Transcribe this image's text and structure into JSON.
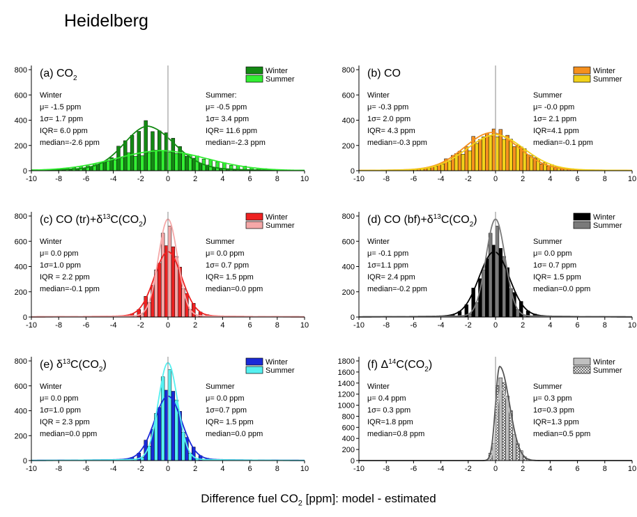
{
  "title": "Heidelberg",
  "xlabel": {
    "pre": "Difference fuel CO",
    "sub": "2",
    "post": " [ppm]:  model - estimated"
  },
  "chart_data": [
    {
      "id": "a",
      "type": "bar",
      "panel_label": "(a) CO",
      "panel_sub": "2",
      "panel_after": "",
      "xlim": [
        -10,
        10
      ],
      "ylim": [
        0,
        800
      ],
      "xticks": [
        -10,
        -8,
        -6,
        -4,
        -2,
        0,
        2,
        4,
        6,
        8,
        10
      ],
      "yticks": [
        0,
        200,
        400,
        600,
        800
      ],
      "grid": false,
      "legend": "top-right",
      "series": [
        {
          "name": "Winter",
          "color": "#138a13",
          "fill": "solid",
          "mu": -1.5,
          "sigma": 1.7,
          "peak": 310,
          "tail": 0.14,
          "skew": 0.15
        },
        {
          "name": "Summer",
          "color": "#33ee33",
          "fill": "solid",
          "mu": -0.5,
          "sigma": 3.4,
          "peak": 145,
          "tail": 0.1,
          "skew": 0
        }
      ],
      "stats": [
        {
          "lines": [
            "Winter",
            "μ= -1.5 ppm",
            "1σ= 1.7 ppm",
            "IQR= 6.0 ppm",
            "median=-2.6 ppm"
          ]
        },
        {
          "lines": [
            "Summer:",
            "μ= -0.5 ppm",
            "1σ= 3.4 ppm",
            "IQR= 11.6 ppm",
            "median=-2.3 ppm"
          ]
        }
      ]
    },
    {
      "id": "b",
      "type": "bar",
      "panel_label": "(b) CO",
      "panel_sub": "",
      "panel_after": "",
      "xlim": [
        -10,
        10
      ],
      "ylim": [
        0,
        800
      ],
      "xticks": [
        -10,
        -8,
        -6,
        -4,
        -2,
        0,
        2,
        4,
        6,
        8,
        "10"
      ],
      "yticks": [
        0,
        200,
        400,
        600,
        800
      ],
      "grid": false,
      "legend": "top-right",
      "series": [
        {
          "name": "Winter",
          "color": "#f5901e",
          "fill": "solid",
          "mu": -0.3,
          "sigma": 2.0,
          "peak": 275,
          "tail": 0.1,
          "skew": 0
        },
        {
          "name": "Summer",
          "color": "#f2d21a",
          "fill": "solid",
          "mu": 0.0,
          "sigma": 2.1,
          "peak": 260,
          "tail": 0.1,
          "skew": 0
        }
      ],
      "stats": [
        {
          "lines": [
            "Winter",
            "μ= -0.3 ppm",
            "1σ= 2.0 ppm",
            "IQR= 4.3 ppm",
            "median=-0.3 ppm"
          ]
        },
        {
          "lines": [
            "Summer",
            "μ= -0.0 ppm",
            "1σ= 2.1 ppm",
            "IQR=4.1 ppm",
            "median=-0.1 ppm"
          ]
        }
      ]
    },
    {
      "id": "c",
      "type": "bar",
      "panel_label": "(c) CO (tr)+δ",
      "panel_sup": "13",
      "panel_mid": "C(CO",
      "panel_sub": "2",
      "panel_after": ")",
      "xlim": [
        -10,
        10
      ],
      "ylim": [
        0,
        800
      ],
      "xticks": [
        -10,
        -8,
        -6,
        -4,
        -2,
        0,
        2,
        4,
        6,
        8,
        10
      ],
      "yticks": [
        0,
        200,
        400,
        600,
        800
      ],
      "grid": false,
      "legend": "top-right",
      "series": [
        {
          "name": "Winter",
          "color": "#ee2222",
          "fill": "solid",
          "mu": 0.0,
          "sigma": 1.0,
          "peak": 500,
          "tail": 0.035,
          "skew": 0
        },
        {
          "name": "Summer",
          "color": "#f5a8a8",
          "fill": "solid",
          "mu": 0.0,
          "sigma": 0.7,
          "peak": 760,
          "tail": 0.02,
          "skew": 0
        }
      ],
      "stats": [
        {
          "lines": [
            "Winter",
            "μ= 0.0 ppm",
            "1σ=1.0 ppm",
            "IQR = 2.2 ppm",
            "median=-0.1 ppm"
          ]
        },
        {
          "lines": [
            "Summer",
            "μ= 0.0 ppm",
            "1σ= 0.7 ppm",
            "IQR= 1.5 ppm",
            "median=0.0 ppm"
          ]
        }
      ]
    },
    {
      "id": "d",
      "type": "bar",
      "panel_label": "(d) CO (bf)+δ",
      "panel_sup": "13",
      "panel_mid": "C(CO",
      "panel_sub": "2",
      "panel_after": ")",
      "xlim": [
        -10,
        10
      ],
      "ylim": [
        0,
        800
      ],
      "xticks": [
        -10,
        -8,
        -6,
        -4,
        -2,
        0,
        2,
        4,
        6,
        8,
        "10"
      ],
      "yticks": [
        0,
        200,
        400,
        600,
        800
      ],
      "grid": false,
      "legend": "top-right",
      "series": [
        {
          "name": "Winter",
          "color": "#000000",
          "fill": "solid",
          "mu": -0.1,
          "sigma": 1.1,
          "peak": 500,
          "tail": 0.035,
          "skew": 0
        },
        {
          "name": "Summer",
          "color": "#7a7a7a",
          "fill": "solid",
          "mu": 0.0,
          "sigma": 0.7,
          "peak": 760,
          "tail": 0.02,
          "skew": 0
        }
      ],
      "stats": [
        {
          "lines": [
            "Winter",
            "μ= -0.1 ppm",
            "1σ=1.1 ppm",
            "IQR= 2.4 ppm",
            "median=-0.2 ppm"
          ]
        },
        {
          "lines": [
            "Summer",
            "μ= 0.0 ppm",
            "1σ= 0.7 ppm",
            "IQR= 1.5 ppm",
            "median=0.0 ppm"
          ]
        }
      ]
    },
    {
      "id": "e",
      "type": "bar",
      "panel_label": "(e) δ",
      "panel_sup": "13",
      "panel_mid": "C(CO",
      "panel_sub": "2",
      "panel_after": ")",
      "xlim": [
        -10,
        10
      ],
      "ylim": [
        0,
        800
      ],
      "xticks": [
        -10,
        -8,
        -6,
        -4,
        -2,
        0,
        2,
        4,
        6,
        8,
        10
      ],
      "yticks": [
        0,
        200,
        400,
        600,
        800
      ],
      "grid": false,
      "legend": "top-right",
      "series": [
        {
          "name": "Winter",
          "color": "#1a2ad8",
          "fill": "solid",
          "mu": 0.0,
          "sigma": 1.0,
          "peak": 500,
          "tail": 0.035,
          "skew": 0
        },
        {
          "name": "Summer",
          "color": "#55f0f0",
          "fill": "solid",
          "mu": 0.0,
          "sigma": 0.7,
          "peak": 770,
          "tail": 0.02,
          "skew": 0
        }
      ],
      "stats": [
        {
          "lines": [
            "Winter",
            "μ= 0.0 ppm",
            "1σ=1.0 ppm",
            "IQR = 2.3 ppm",
            "median=0.0 ppm"
          ]
        },
        {
          "lines": [
            "Summer",
            "μ= 0.0 ppm",
            "1σ=0.7 ppm",
            "IQR= 1.5 ppm",
            "median=0.0 ppm"
          ]
        }
      ]
    },
    {
      "id": "f",
      "type": "bar",
      "panel_label": "(f) Δ",
      "panel_sup": "14",
      "panel_mid": "C(CO",
      "panel_sub": "2",
      "panel_after": ")",
      "xlim": [
        -10,
        10
      ],
      "ylim": [
        0,
        1800
      ],
      "xticks": [
        -10,
        -8,
        -6,
        -4,
        -2,
        0,
        2,
        4,
        6,
        8,
        "10"
      ],
      "yticks": [
        0,
        200,
        400,
        600,
        800,
        1000,
        1200,
        1400,
        1600,
        1800
      ],
      "grid": false,
      "legend": "top-right",
      "series": [
        {
          "name": "Winter",
          "color": "#c0c0c0",
          "fill": "solid",
          "mu": 0.4,
          "sigma": 0.3,
          "peak": 1300,
          "tail": 0,
          "skew": 1.4
        },
        {
          "name": "Summer",
          "color": "#555555",
          "fill": "hatch",
          "mu": 0.3,
          "sigma": 0.3,
          "peak": 1700,
          "tail": 0,
          "skew": 1.4
        }
      ],
      "stats": [
        {
          "lines": [
            "Winter",
            "μ= 0.4 ppm",
            "1σ= 0.3 ppm",
            "IQR=1.8 ppm",
            "median=0.8 ppm"
          ]
        },
        {
          "lines": [
            "Summer",
            "μ= 0.3 ppm",
            "1σ=0.3 ppm",
            "IQR=1.3 ppm",
            "median=0.5 ppm"
          ]
        }
      ]
    }
  ]
}
